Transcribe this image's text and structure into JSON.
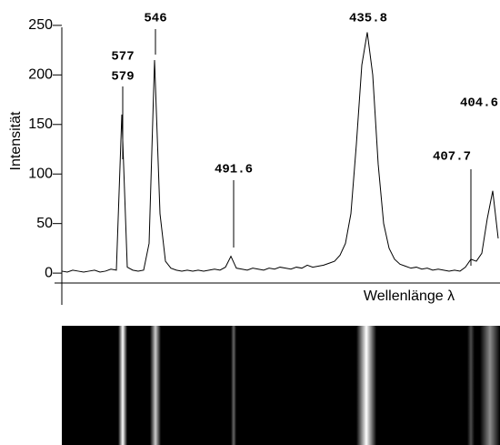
{
  "chart_data": {
    "type": "line",
    "categories": [
      null,
      null,
      null,
      null,
      null,
      null,
      null,
      null,
      null,
      null,
      null,
      null,
      null,
      null,
      null,
      null,
      null,
      null,
      null,
      null,
      null,
      null,
      null,
      null,
      null,
      null,
      null,
      null,
      null,
      null,
      null,
      null,
      null,
      null,
      null,
      null,
      null,
      null,
      null,
      null,
      null,
      null,
      null,
      null,
      null,
      null,
      null,
      null,
      null,
      null,
      null,
      null,
      null,
      null,
      null,
      null,
      null,
      null,
      null,
      null,
      null,
      null,
      null,
      null,
      null,
      null,
      null,
      null,
      null,
      null,
      null,
      null,
      null,
      null,
      null,
      null,
      null,
      null,
      null,
      null,
      null
    ],
    "values": [
      2,
      1,
      3,
      2,
      1,
      2,
      3,
      1,
      2,
      4,
      3,
      160,
      6,
      3,
      2,
      3,
      30,
      215,
      60,
      12,
      5,
      3,
      2,
      3,
      2,
      3,
      2,
      3,
      4,
      3,
      6,
      17,
      5,
      4,
      3,
      5,
      4,
      3,
      5,
      4,
      6,
      5,
      4,
      6,
      5,
      8,
      6,
      7,
      8,
      10,
      12,
      18,
      30,
      60,
      130,
      210,
      243,
      200,
      110,
      50,
      25,
      14,
      9,
      7,
      5,
      6,
      4,
      5,
      3,
      4,
      3,
      2,
      3,
      2,
      6,
      14,
      12,
      20,
      55,
      83,
      35
    ],
    "color": "#000000",
    "ylabel": "Intensität",
    "xlabel": "Wellenlänge λ",
    "ylim": [
      -10,
      260
    ],
    "yticks": [
      0,
      50,
      100,
      150,
      200,
      250
    ],
    "annotations": [
      "577",
      "579",
      "546",
      "491.6",
      "435.8",
      "404.6",
      "407.7"
    ]
  }
}
